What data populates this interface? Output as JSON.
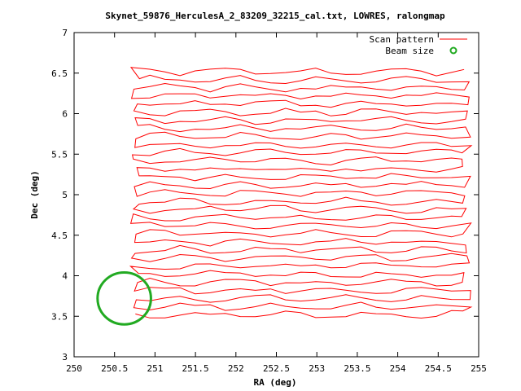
{
  "chart_data": {
    "type": "line",
    "title": "Skynet_59876_HerculesA_2_83209_32215_cal.txt, LOWRES, ralongmap",
    "xlabel": "RA (deg)",
    "ylabel": "Dec (deg)",
    "xlim": [
      250,
      255
    ],
    "ylim": [
      3,
      7
    ],
    "x_ticks": [
      "250",
      "250.5",
      "251",
      "251.5",
      "252",
      "252.5",
      "253",
      "253.5",
      "254",
      "254.5",
      "255"
    ],
    "y_ticks": [
      "3",
      "3.5",
      "4",
      "4.5",
      "5",
      "5.5",
      "6",
      "6.5",
      "7"
    ],
    "grid": false,
    "legend_position": "top-right",
    "colors": {
      "scan": "#ff0000",
      "beam": "#22aa22"
    },
    "series": [
      {
        "name": "Scan pattern",
        "kind": "raster",
        "ra_start": 250.75,
        "ra_end": 254.85,
        "dec_start": 3.52,
        "dec_end": 6.58,
        "row_spacing": 0.1,
        "row_pitch": 0.2
      },
      {
        "name": "Beam size",
        "kind": "circle",
        "center_ra": 250.62,
        "center_dec": 3.72,
        "radius_ra_deg": 0.33,
        "radius_dec_deg": 0.32
      }
    ]
  }
}
